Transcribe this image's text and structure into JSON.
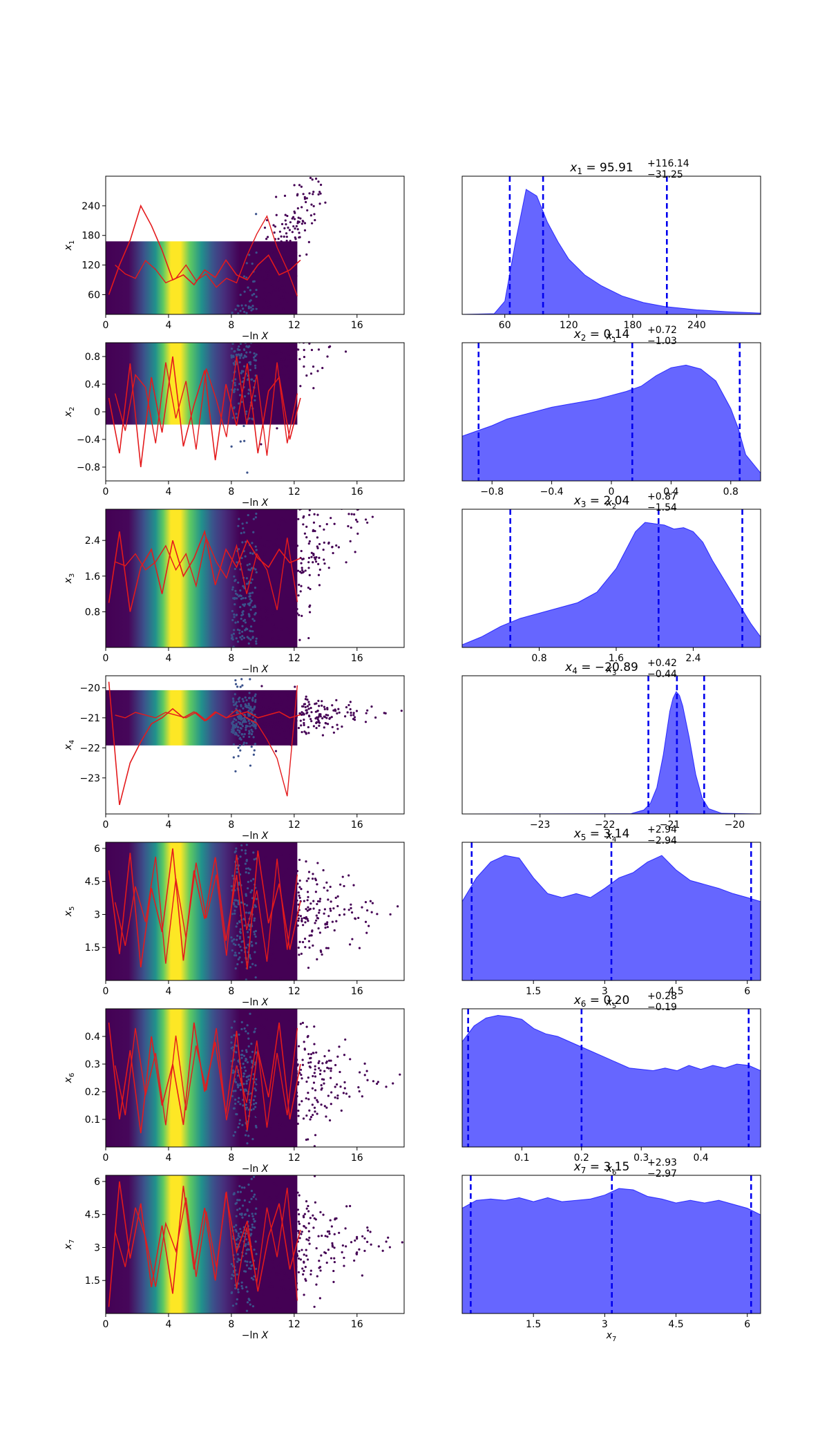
{
  "chart_data": [
    {
      "type": "scatter",
      "row": 1,
      "xlabel": "−ln X",
      "ylabel": "x",
      "ylabel_sub": "1",
      "xlim": [
        0,
        19
      ],
      "ylim": [
        20,
        300
      ],
      "xticks": [
        0,
        4,
        8,
        12,
        16
      ],
      "yticks": [
        60,
        120,
        180,
        240
      ],
      "spread": [
        30,
        120,
        75
      ],
      "trace": [
        60,
        120,
        170,
        240,
        200,
        150,
        90,
        100,
        80,
        110,
        95,
        130,
        100,
        90,
        120,
        140,
        100,
        110,
        130
      ]
    },
    {
      "type": "density",
      "row": 1,
      "title": "x",
      "title_sub": "1",
      "title_value": " = 95.91",
      "title_sup": "+116.14",
      "title_inf": "−31.25",
      "xlabel": "x",
      "xlabel_sub": "1",
      "xlim": [
        20,
        300
      ],
      "xticks": [
        60,
        120,
        180,
        240
      ],
      "vlines": [
        64.66,
        95.91,
        212.05
      ],
      "curve": {
        "x": [
          20,
          50,
          60,
          70,
          80,
          90,
          95,
          100,
          110,
          120,
          135,
          150,
          170,
          190,
          210,
          240,
          270,
          300
        ],
        "y": [
          0,
          0.005,
          0.1,
          0.55,
          0.95,
          0.9,
          0.8,
          0.7,
          0.55,
          0.42,
          0.3,
          0.22,
          0.14,
          0.09,
          0.06,
          0.035,
          0.02,
          0.01
        ]
      }
    },
    {
      "type": "scatter",
      "row": 2,
      "xlabel": "−ln X",
      "ylabel": "x",
      "ylabel_sub": "2",
      "xlim": [
        0,
        19
      ],
      "ylim": [
        -1,
        1
      ],
      "xticks": [
        0,
        4,
        8,
        12,
        16
      ],
      "yticks": [
        -0.8,
        -0.4,
        0.0,
        0.4,
        0.8
      ],
      "spread": [
        0.85,
        0.9,
        0.1
      ],
      "trace": [
        0.2,
        -0.6,
        0.7,
        -0.8,
        0.5,
        -0.3,
        0.8,
        -0.5,
        0.1,
        0.6,
        -0.7,
        0.4,
        -0.2,
        0.7,
        -0.6,
        0.3,
        0.5,
        -0.4,
        0.2
      ]
    },
    {
      "type": "density",
      "row": 2,
      "title": "x",
      "title_sub": "2",
      "title_value": " = 0.14",
      "title_sup": "+0.72",
      "title_inf": "−1.03",
      "xlabel": "x",
      "xlabel_sub": "2",
      "xlim": [
        -1,
        1
      ],
      "xticks": [
        -0.8,
        -0.4,
        0.0,
        0.4,
        0.8
      ],
      "vlines": [
        -0.89,
        0.14,
        0.86
      ],
      "curve": {
        "x": [
          -1,
          -0.9,
          -0.8,
          -0.7,
          -0.6,
          -0.5,
          -0.4,
          -0.3,
          -0.2,
          -0.1,
          0,
          0.1,
          0.2,
          0.3,
          0.4,
          0.5,
          0.6,
          0.7,
          0.8,
          0.85,
          0.9,
          1.0
        ],
        "y": [
          0.34,
          0.38,
          0.42,
          0.47,
          0.5,
          0.53,
          0.56,
          0.58,
          0.6,
          0.62,
          0.65,
          0.68,
          0.72,
          0.8,
          0.86,
          0.88,
          0.85,
          0.76,
          0.55,
          0.4,
          0.2,
          0.06
        ]
      }
    },
    {
      "type": "scatter",
      "row": 3,
      "xlabel": "−ln X",
      "ylabel": "x",
      "ylabel_sub": "3",
      "xlim": [
        0,
        19
      ],
      "ylim": [
        0,
        3.1
      ],
      "xticks": [
        0,
        4,
        8,
        12,
        16
      ],
      "yticks": [
        0.8,
        1.6,
        2.4
      ],
      "spread": [
        1.2,
        1.7,
        0.3
      ],
      "trace": [
        1.0,
        2.6,
        0.8,
        1.8,
        2.2,
        1.2,
        2.4,
        1.6,
        2.0,
        2.6,
        1.4,
        2.2,
        1.8,
        2.4,
        2.0,
        1.8,
        2.2,
        1.9,
        2.0
      ]
    },
    {
      "type": "density",
      "row": 3,
      "title": "x",
      "title_sub": "3",
      "title_value": " = 2.04",
      "title_sup": "+0.87",
      "title_inf": "−1.54",
      "xlabel": "x",
      "xlabel_sub": "3",
      "xlim": [
        0,
        3.1
      ],
      "xticks": [
        0.8,
        1.6,
        2.4
      ],
      "vlines": [
        0.5,
        2.04,
        2.91
      ],
      "curve": {
        "x": [
          0,
          0.2,
          0.4,
          0.6,
          0.8,
          1.0,
          1.2,
          1.4,
          1.6,
          1.8,
          1.9,
          2.0,
          2.1,
          2.2,
          2.3,
          2.4,
          2.5,
          2.6,
          2.8,
          3.0,
          3.1
        ],
        "y": [
          0.02,
          0.08,
          0.16,
          0.22,
          0.26,
          0.3,
          0.34,
          0.42,
          0.6,
          0.88,
          0.95,
          0.94,
          0.93,
          0.9,
          0.91,
          0.88,
          0.8,
          0.66,
          0.42,
          0.18,
          0.08
        ]
      }
    },
    {
      "type": "scatter",
      "row": 4,
      "xlabel": "−ln X",
      "ylabel": "x",
      "ylabel_sub": "4",
      "xlim": [
        0,
        19
      ],
      "ylim": [
        -24.2,
        -19.6
      ],
      "xticks": [
        0,
        4,
        8,
        12,
        16
      ],
      "yticks": [
        -23,
        -22,
        -21,
        -20
      ],
      "spread": [
        -21,
        0.8,
        0.02
      ],
      "trace": [
        -19.8,
        -23.9,
        -22.5,
        -21.8,
        -21.2,
        -21.0,
        -20.7,
        -21.0,
        -20.8,
        -21.1,
        -20.8,
        -21.0,
        -20.9,
        -20.8,
        -21.0,
        -20.9,
        -20.8,
        -21.0,
        -20.9
      ]
    },
    {
      "type": "density",
      "row": 4,
      "title": "x",
      "title_sub": "4",
      "title_value": " = −20.89",
      "title_sup": "+0.42",
      "title_inf": "−0.44",
      "xlabel": "x",
      "xlabel_sub": "4",
      "xlim": [
        -24.2,
        -19.6
      ],
      "xticks": [
        -23,
        -22,
        -21,
        -20
      ],
      "vlines": [
        -21.33,
        -20.89,
        -20.47
      ],
      "curve": {
        "x": [
          -24.2,
          -21.6,
          -21.4,
          -21.3,
          -21.2,
          -21.1,
          -21.0,
          -20.95,
          -20.9,
          -20.85,
          -20.8,
          -20.7,
          -20.6,
          -20.5,
          -20.4,
          -20.2,
          -19.6
        ],
        "y": [
          0,
          0.002,
          0.03,
          0.08,
          0.2,
          0.45,
          0.78,
          0.88,
          0.93,
          0.9,
          0.82,
          0.58,
          0.3,
          0.12,
          0.04,
          0.005,
          0
        ]
      }
    },
    {
      "type": "scatter",
      "row": 5,
      "xlabel": "−ln X",
      "ylabel": "x",
      "ylabel_sub": "5",
      "xlim": [
        0,
        19
      ],
      "ylim": [
        0,
        6.28
      ],
      "xticks": [
        0,
        4,
        8,
        12,
        16
      ],
      "yticks": [
        1.5,
        3.0,
        4.5,
        6.0
      ],
      "spread": [
        3.14,
        3.1,
        0.0
      ],
      "trace": [
        5.0,
        1.2,
        5.8,
        0.6,
        4.2,
        2.2,
        6.0,
        0.9,
        5.0,
        2.8,
        5.6,
        1.8,
        4.8,
        0.5,
        5.9,
        2.6,
        4.4,
        1.4,
        3.6
      ]
    },
    {
      "type": "density",
      "row": 5,
      "title": "x",
      "title_sub": "5",
      "title_value": " = 3.14",
      "title_sup": "+2.94",
      "title_inf": "−2.94",
      "xlabel": "x",
      "xlabel_sub": "5",
      "xlim": [
        0,
        6.28
      ],
      "xticks": [
        1.5,
        3.0,
        4.5,
        6.0
      ],
      "vlines": [
        0.2,
        3.14,
        6.08
      ],
      "curve": {
        "x": [
          0,
          0.3,
          0.6,
          0.9,
          1.2,
          1.5,
          1.8,
          2.1,
          2.4,
          2.7,
          3.0,
          3.3,
          3.6,
          3.9,
          4.2,
          4.5,
          4.8,
          5.1,
          5.4,
          5.7,
          6.0,
          6.28
        ],
        "y": [
          0.6,
          0.78,
          0.9,
          0.95,
          0.93,
          0.78,
          0.66,
          0.63,
          0.66,
          0.63,
          0.7,
          0.78,
          0.82,
          0.9,
          0.95,
          0.84,
          0.76,
          0.73,
          0.7,
          0.66,
          0.63,
          0.6
        ]
      }
    },
    {
      "type": "scatter",
      "row": 6,
      "xlabel": "−ln X",
      "ylabel": "x",
      "ylabel_sub": "6",
      "xlim": [
        0,
        19
      ],
      "ylim": [
        0,
        0.5
      ],
      "xticks": [
        0,
        4,
        8,
        12,
        16
      ],
      "yticks": [
        0.1,
        0.2,
        0.3,
        0.4
      ],
      "spread": [
        0.25,
        0.24,
        0.0
      ],
      "trace": [
        0.45,
        0.1,
        0.35,
        0.05,
        0.4,
        0.15,
        0.3,
        0.08,
        0.45,
        0.2,
        0.38,
        0.12,
        0.42,
        0.06,
        0.35,
        0.18,
        0.45,
        0.1,
        0.3
      ]
    },
    {
      "type": "density",
      "row": 6,
      "title": "x",
      "title_sub": "6",
      "title_value": " = 0.20",
      "title_sup": "+0.28",
      "title_inf": "−0.19",
      "xlabel": "x",
      "xlabel_sub": "6",
      "xlim": [
        0,
        0.5
      ],
      "xticks": [
        0.1,
        0.2,
        0.3,
        0.4
      ],
      "vlines": [
        0.01,
        0.2,
        0.48
      ],
      "curve": {
        "x": [
          0,
          0.02,
          0.04,
          0.06,
          0.08,
          0.1,
          0.12,
          0.14,
          0.16,
          0.18,
          0.2,
          0.22,
          0.24,
          0.26,
          0.28,
          0.3,
          0.32,
          0.34,
          0.36,
          0.38,
          0.4,
          0.42,
          0.44,
          0.46,
          0.48,
          0.5
        ],
        "y": [
          0.8,
          0.92,
          0.98,
          1.0,
          0.99,
          0.97,
          0.9,
          0.86,
          0.84,
          0.8,
          0.76,
          0.72,
          0.68,
          0.64,
          0.6,
          0.59,
          0.58,
          0.6,
          0.58,
          0.62,
          0.59,
          0.62,
          0.6,
          0.63,
          0.62,
          0.58
        ]
      }
    },
    {
      "type": "scatter",
      "row": 7,
      "xlabel": "−ln X",
      "ylabel": "x",
      "ylabel_sub": "7",
      "xlim": [
        0,
        19
      ],
      "ylim": [
        0,
        6.28
      ],
      "xticks": [
        0,
        4,
        8,
        12,
        16
      ],
      "yticks": [
        1.5,
        3.0,
        4.5,
        6.0
      ],
      "spread": [
        3.14,
        3.1,
        0.0
      ],
      "trace": [
        0.3,
        6.0,
        2.5,
        5.0,
        1.2,
        4.0,
        0.9,
        5.8,
        2.0,
        4.8,
        1.5,
        5.5,
        2.8,
        4.2,
        1.0,
        3.5,
        5.0,
        2.0,
        3.8
      ]
    },
    {
      "type": "density",
      "row": 7,
      "title": "x",
      "title_sub": "7",
      "title_value": " = 3.15",
      "title_sup": "+2.93",
      "title_inf": "−2.97",
      "xlabel": "x",
      "xlabel_sub": "7",
      "xlim": [
        0,
        6.28
      ],
      "xticks": [
        1.5,
        3.0,
        4.5,
        6.0
      ],
      "vlines": [
        0.18,
        3.15,
        6.08
      ],
      "curve": {
        "x": [
          0,
          0.3,
          0.6,
          0.9,
          1.2,
          1.5,
          1.8,
          2.1,
          2.4,
          2.7,
          3.0,
          3.3,
          3.6,
          3.9,
          4.2,
          4.5,
          4.8,
          5.1,
          5.4,
          5.7,
          6.0,
          6.28
        ],
        "y": [
          0.8,
          0.86,
          0.87,
          0.86,
          0.88,
          0.85,
          0.88,
          0.85,
          0.86,
          0.87,
          0.9,
          0.95,
          0.94,
          0.89,
          0.87,
          0.84,
          0.86,
          0.84,
          0.86,
          0.83,
          0.8,
          0.75
        ]
      }
    }
  ]
}
